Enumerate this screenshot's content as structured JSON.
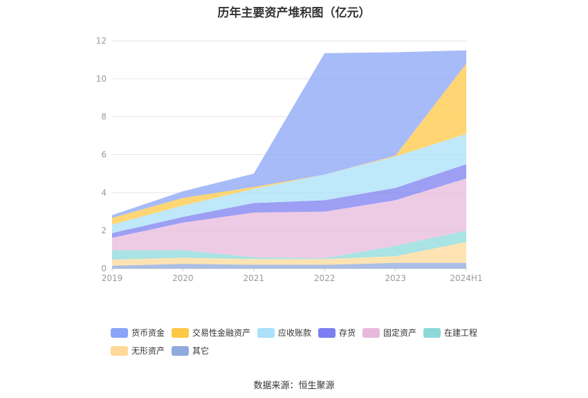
{
  "chart_data": {
    "type": "area",
    "stacked": true,
    "title": "历年主要资产堆积图（亿元）",
    "categories": [
      "2019",
      "2020",
      "2021",
      "2022",
      "2023",
      "2024H1"
    ],
    "ylim": [
      0,
      12
    ],
    "yticks": [
      0,
      2,
      4,
      6,
      8,
      10,
      12
    ],
    "grid": true,
    "legend_position": "bottom",
    "series": [
      {
        "name": "其它",
        "color": "#8faadc",
        "values": [
          0.15,
          0.25,
          0.2,
          0.2,
          0.3,
          0.3
        ]
      },
      {
        "name": "无形资产",
        "color": "#ffd999",
        "values": [
          0.32,
          0.32,
          0.3,
          0.3,
          0.35,
          1.1
        ]
      },
      {
        "name": "在建工程",
        "color": "#8dd9d9",
        "values": [
          0.5,
          0.4,
          0.1,
          0.05,
          0.55,
          0.6
        ]
      },
      {
        "name": "固定资产",
        "color": "#e8b9dc",
        "values": [
          0.65,
          1.45,
          2.35,
          2.45,
          2.4,
          2.75
        ]
      },
      {
        "name": "存货",
        "color": "#7b7ff0",
        "values": [
          0.25,
          0.3,
          0.5,
          0.6,
          0.65,
          0.75
        ]
      },
      {
        "name": "应收账款",
        "color": "#aae0f9",
        "values": [
          0.45,
          0.6,
          0.75,
          1.35,
          1.65,
          1.6
        ]
      },
      {
        "name": "交易性金融资产",
        "color": "#ffc844",
        "values": [
          0.35,
          0.4,
          0.1,
          0.0,
          0.05,
          3.7
        ]
      },
      {
        "name": "货币资金",
        "color": "#8aa4f7",
        "values": [
          0.15,
          0.35,
          0.7,
          6.4,
          5.45,
          0.7
        ]
      }
    ],
    "legend_order": [
      "货币资金",
      "交易性金融资产",
      "应收账款",
      "存货",
      "固定资产",
      "在建工程",
      "无形资产",
      "其它"
    ]
  },
  "source": "数据来源：恒生聚源"
}
